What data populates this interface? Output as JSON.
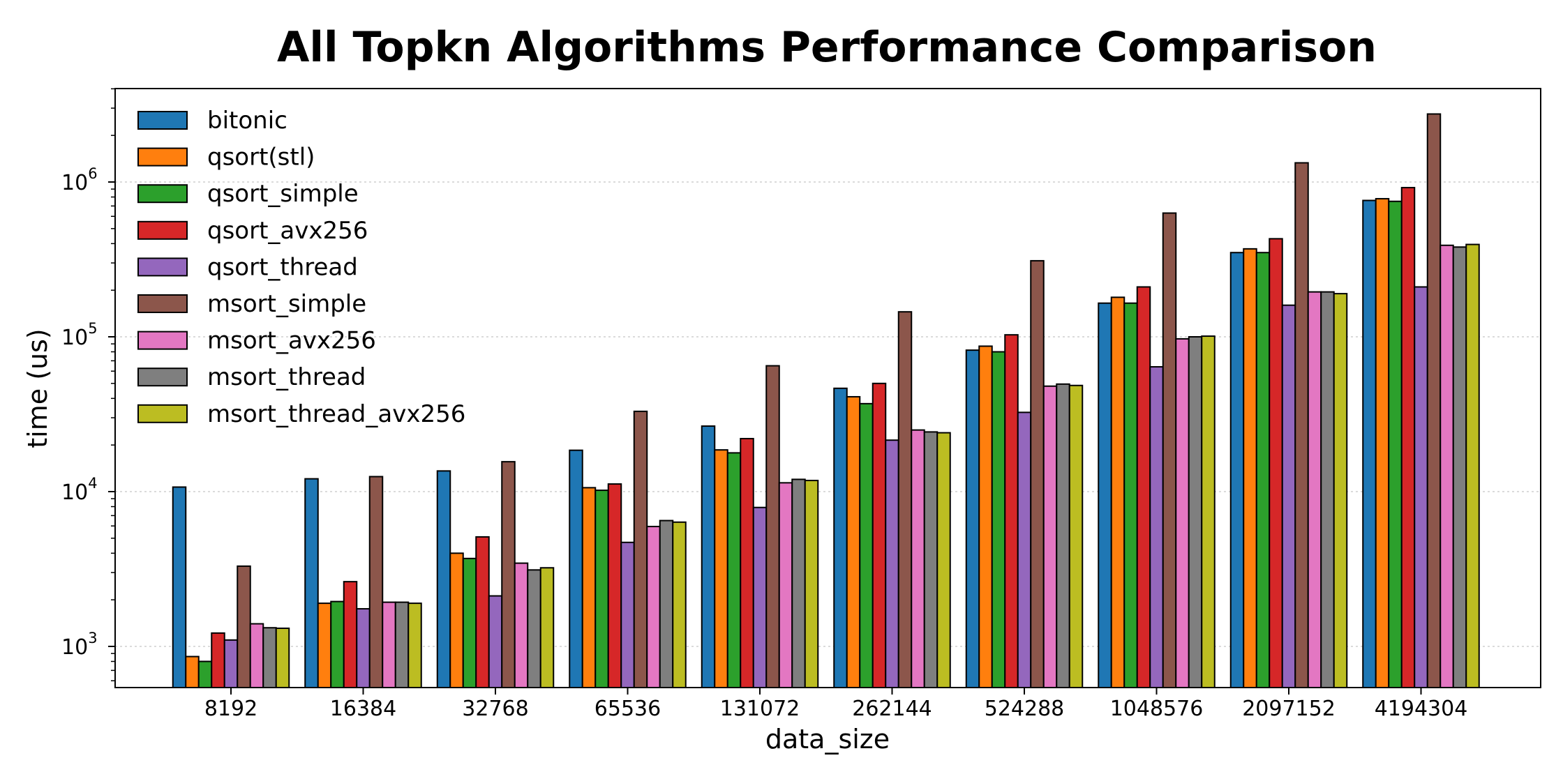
{
  "chart_data": {
    "type": "bar",
    "title": "All Topkn Algorithms Performance Comparison",
    "xlabel": "data_size",
    "ylabel": "time (us)",
    "yscale": "log",
    "ylim": [
      550,
      4200000
    ],
    "y_ticks": [
      {
        "value": 1000,
        "base": "10",
        "exp": "3"
      },
      {
        "value": 10000,
        "base": "10",
        "exp": "4"
      },
      {
        "value": 100000,
        "base": "10",
        "exp": "5"
      },
      {
        "value": 1000000,
        "base": "10",
        "exp": "6"
      }
    ],
    "grid": "y-major dotted",
    "legend": "top-left",
    "categories": [
      "8192",
      "16384",
      "32768",
      "65536",
      "131072",
      "262144",
      "524288",
      "1048576",
      "2097152",
      "4194304"
    ],
    "series": [
      {
        "name": "bitonic",
        "color": "#1f77b4",
        "values": [
          10700,
          12100,
          13600,
          18500,
          26500,
          46500,
          82000,
          165000,
          350000,
          760000
        ]
      },
      {
        "name": "qsort(stl)",
        "color": "#ff7f0e",
        "values": [
          860,
          1900,
          4000,
          10600,
          18600,
          41000,
          87000,
          180000,
          370000,
          780000
        ]
      },
      {
        "name": "qsort_simple",
        "color": "#2ca02c",
        "values": [
          800,
          1950,
          3700,
          10200,
          17800,
          37000,
          80000,
          165000,
          350000,
          750000
        ]
      },
      {
        "name": "qsort_avx256",
        "color": "#d62728",
        "values": [
          1220,
          2620,
          5100,
          11200,
          22000,
          50000,
          103000,
          210000,
          430000,
          920000
        ]
      },
      {
        "name": "qsort_thread",
        "color": "#9467bd",
        "values": [
          1100,
          1750,
          2120,
          4700,
          7900,
          21500,
          32500,
          64000,
          160000,
          210000
        ]
      },
      {
        "name": "msort_simple",
        "color": "#8c564b",
        "values": [
          3300,
          12500,
          15600,
          33000,
          65000,
          145000,
          310000,
          630000,
          1330000,
          2750000
        ]
      },
      {
        "name": "msort_avx256",
        "color": "#e377c2",
        "values": [
          1400,
          1930,
          3450,
          5950,
          11400,
          25000,
          48000,
          97000,
          195000,
          390000
        ]
      },
      {
        "name": "msort_thread",
        "color": "#7f7f7f",
        "values": [
          1320,
          1930,
          3120,
          6500,
          12000,
          24300,
          49500,
          100000,
          195000,
          380000
        ]
      },
      {
        "name": "msort_thread_avx256",
        "color": "#bcbd22",
        "values": [
          1310,
          1900,
          3220,
          6350,
          11800,
          24000,
          48500,
          101000,
          190000,
          395000
        ]
      }
    ]
  }
}
